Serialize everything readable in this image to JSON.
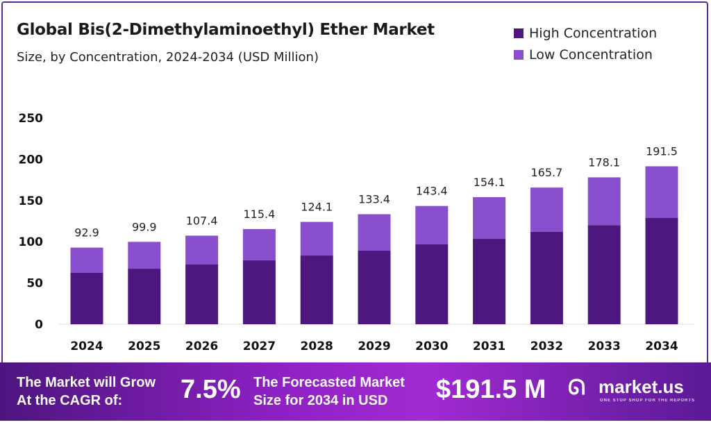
{
  "chart_data": {
    "type": "bar",
    "stacked": true,
    "title": "Global Bis(2-Dimethylaminoethyl) Ether Market",
    "subtitle": "Size, by Concentration, 2024-2034 (USD Million)",
    "categories": [
      "2024",
      "2025",
      "2026",
      "2027",
      "2028",
      "2029",
      "2030",
      "2031",
      "2032",
      "2033",
      "2034"
    ],
    "series": [
      {
        "name": "High Concentration",
        "color": "#4e1780",
        "values": [
          62.3,
          67.3,
          72.4,
          77.4,
          83.3,
          89.2,
          96.8,
          103.5,
          112.0,
          120.0,
          128.8
        ]
      },
      {
        "name": "Low Concentration",
        "color": "#8a4fcc",
        "values": [
          30.6,
          32.6,
          35.0,
          38.0,
          40.8,
          44.2,
          46.6,
          50.6,
          53.7,
          58.1,
          62.7
        ]
      }
    ],
    "totals": [
      "92.9",
      "99.9",
      "107.4",
      "115.4",
      "124.1",
      "133.4",
      "143.4",
      "154.1",
      "165.7",
      "178.1",
      "191.5"
    ],
    "yticks": [
      "0",
      "50",
      "100",
      "150",
      "200",
      "250"
    ],
    "ylim": [
      0,
      250
    ],
    "grid": false,
    "legend_position": "top-right"
  },
  "footer": {
    "cagr_line1": "The Market will Grow",
    "cagr_line2": "At the CAGR of:",
    "cagr_value": "7.5%",
    "forecast_line1": "The Forecasted Market",
    "forecast_line2": "Size for 2034 in USD",
    "forecast_value": "$191.5 M",
    "logo": "market.us",
    "logo_tagline": "ONE STOP SHOP FOR THE REPORTS"
  }
}
